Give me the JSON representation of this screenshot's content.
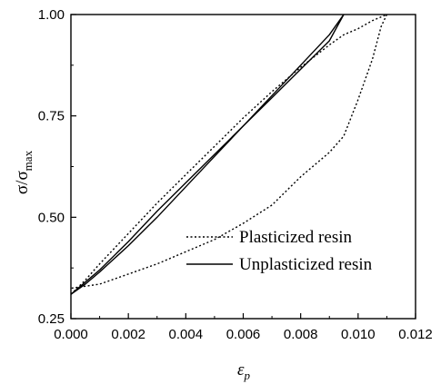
{
  "chart_data": {
    "type": "line",
    "title": "",
    "xlabel": {
      "base": "ε",
      "sub": "p"
    },
    "ylabel": {
      "base": "σ/σ",
      "sub": "max"
    },
    "xlim": [
      0.0,
      0.012
    ],
    "ylim": [
      0.25,
      1.0
    ],
    "x_ticks": [
      0.0,
      0.002,
      0.004,
      0.006,
      0.008,
      0.01,
      0.012
    ],
    "x_tick_labels": [
      "0.000",
      "0.002",
      "0.004",
      "0.006",
      "0.008",
      "0.010",
      "0.012"
    ],
    "y_ticks": [
      0.25,
      0.5,
      0.75,
      1.0
    ],
    "y_tick_labels": [
      "0.25",
      "0.50",
      "0.75",
      "1.00"
    ],
    "grid": false,
    "legend_position": "lower-right",
    "series": [
      {
        "name": "Plasticized resin",
        "style": "dotted",
        "color": "#000000",
        "loading": {
          "x": [
            0.0,
            0.0005,
            0.001,
            0.002,
            0.003,
            0.004,
            0.005,
            0.006,
            0.007,
            0.008,
            0.009,
            0.0095,
            0.01,
            0.0105,
            0.011
          ],
          "y": [
            0.31,
            0.345,
            0.385,
            0.46,
            0.535,
            0.605,
            0.675,
            0.745,
            0.81,
            0.87,
            0.925,
            0.95,
            0.965,
            0.985,
            1.0
          ]
        },
        "unloading": {
          "x": [
            0.011,
            0.0108,
            0.0105,
            0.01,
            0.0095,
            0.009,
            0.008,
            0.007,
            0.006,
            0.005,
            0.004,
            0.003,
            0.002,
            0.001,
            0.0005,
            0.0
          ],
          "y": [
            1.0,
            0.97,
            0.89,
            0.79,
            0.7,
            0.66,
            0.6,
            0.53,
            0.485,
            0.445,
            0.415,
            0.385,
            0.36,
            0.335,
            0.33,
            0.325
          ]
        }
      },
      {
        "name": "Unplasticized resin",
        "style": "solid",
        "color": "#000000",
        "loading": {
          "x": [
            0.0,
            0.0005,
            0.001,
            0.002,
            0.003,
            0.004,
            0.005,
            0.006,
            0.007,
            0.008,
            0.009,
            0.0095
          ],
          "y": [
            0.31,
            0.34,
            0.37,
            0.44,
            0.515,
            0.585,
            0.655,
            0.725,
            0.795,
            0.865,
            0.935,
            1.0
          ]
        },
        "unloading": {
          "x": [
            0.0095,
            0.009,
            0.008,
            0.007,
            0.006,
            0.005,
            0.004,
            0.003,
            0.002,
            0.001,
            0.0005,
            0.0
          ],
          "y": [
            1.0,
            0.95,
            0.875,
            0.8,
            0.725,
            0.65,
            0.575,
            0.5,
            0.43,
            0.365,
            0.335,
            0.31
          ]
        }
      }
    ]
  }
}
